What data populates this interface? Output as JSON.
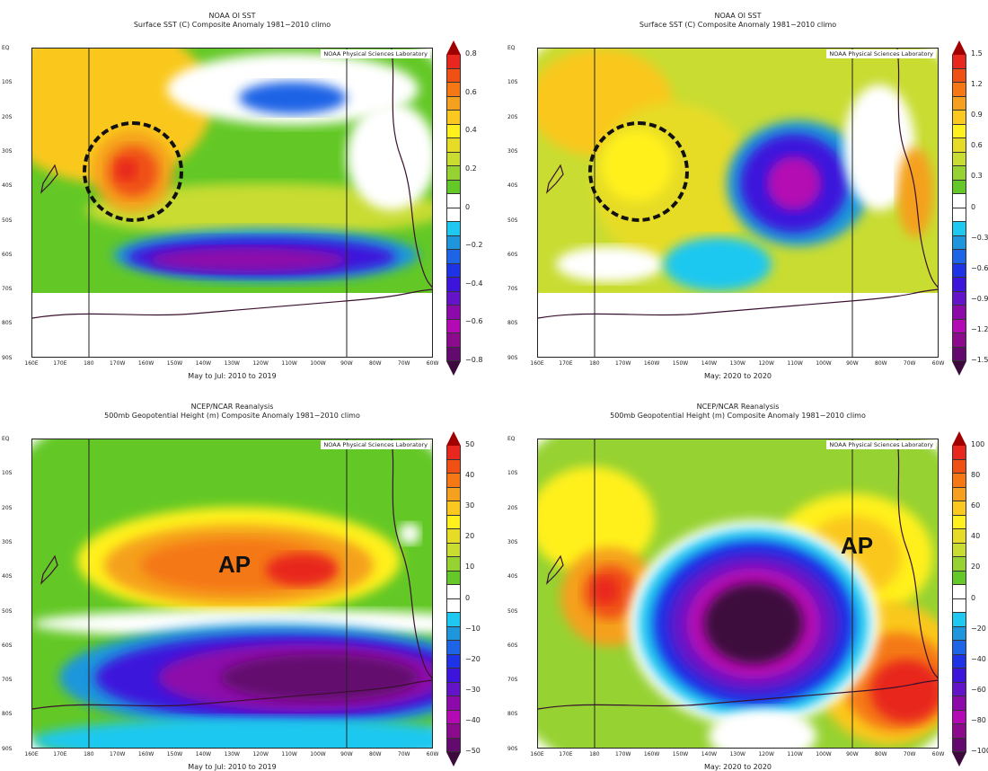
{
  "lat_labels": [
    "EQ",
    "10S",
    "20S",
    "30S",
    "40S",
    "50S",
    "60S",
    "70S",
    "80S",
    "90S"
  ],
  "lon_labels": [
    "160E",
    "170E",
    "180",
    "170W",
    "160W",
    "150W",
    "140W",
    "130W",
    "120W",
    "110W",
    "100W",
    "90W",
    "80W",
    "70W",
    "60W"
  ],
  "watermark": "NOAA Physical Sciences Laboratory",
  "colors": [
    "#e8281e",
    "#f05014",
    "#f57814",
    "#f5a01e",
    "#fac81e",
    "#fff01e",
    "#e6dc28",
    "#c8dc32",
    "#96d232",
    "#64c828",
    "#ffffff",
    "#ffffff",
    "#1ec8f0",
    "#1e96dc",
    "#1e64e6",
    "#1e32e6",
    "#3c14dc",
    "#6414c8",
    "#8c0aaa",
    "#b40ab4",
    "#8c0a8c",
    "#640a6e"
  ],
  "panels": [
    {
      "title1": "NOAA OI SST",
      "title2": "Surface SST (C) Composite Anomaly 1981−2010 climo",
      "period": "May to Jul: 2010 to 2019",
      "colorbar": [
        "0.8",
        "0.6",
        "0.4",
        "0.2",
        "0",
        "−0.2",
        "−0.4",
        "−0.6",
        "−0.8"
      ],
      "annotation": {
        "type": "circle"
      }
    },
    {
      "title1": "NOAA OI SST",
      "title2": "Surface SST (C) Composite Anomaly 1981−2010 climo",
      "period": "May: 2020 to 2020",
      "colorbar": [
        "1.5",
        "1.2",
        "0.9",
        "0.6",
        "0.3",
        "0",
        "−0.3",
        "−0.6",
        "−0.9",
        "−1.2",
        "−1.5"
      ],
      "annotation": {
        "type": "circle"
      }
    },
    {
      "title1": "NCEP/NCAR Reanalysis",
      "title2": "500mb Geopotential Height (m) Composite Anomaly 1981−2010 climo",
      "period": "May to Jul: 2010 to 2019",
      "colorbar": [
        "50",
        "40",
        "30",
        "20",
        "10",
        "0",
        "−10",
        "−20",
        "−30",
        "−40",
        "−50"
      ],
      "annotation": {
        "type": "text",
        "text": "AP"
      }
    },
    {
      "title1": "NCEP/NCAR Reanalysis",
      "title2": "500mb Geopotential Height (m) Composite Anomaly 1981−2010 climo",
      "period": "May: 2020 to 2020",
      "colorbar": [
        "100",
        "80",
        "60",
        "40",
        "20",
        "0",
        "−20",
        "−40",
        "−60",
        "−80",
        "−100"
      ],
      "annotation": {
        "type": "text",
        "text": "AP"
      }
    }
  ]
}
